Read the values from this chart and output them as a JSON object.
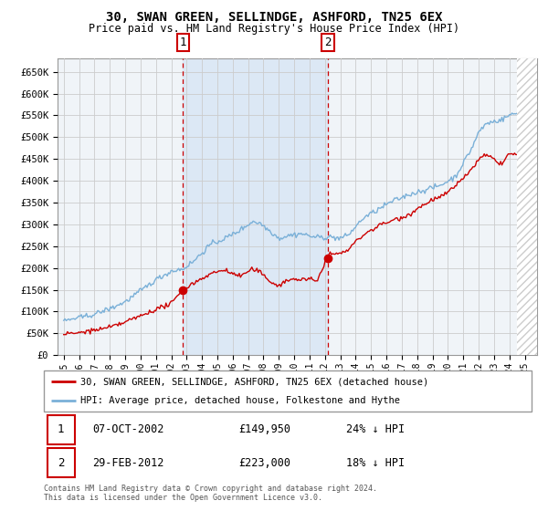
{
  "title": "30, SWAN GREEN, SELLINDGE, ASHFORD, TN25 6EX",
  "subtitle": "Price paid vs. HM Land Registry's House Price Index (HPI)",
  "ylim": [
    0,
    680000
  ],
  "background_color": "#ffffff",
  "grid_color": "#cccccc",
  "plot_bg_color": "#f0f4f8",
  "shade_color": "#dce8f5",
  "hpi_line_color": "#7ab0d8",
  "price_line_color": "#cc0000",
  "vline_color": "#cc0000",
  "sale1_x": 2002.77,
  "sale1_y": 149950,
  "sale1_label": "1",
  "sale1_date": "07-OCT-2002",
  "sale1_price": "£149,950",
  "sale1_hpi": "24% ↓ HPI",
  "sale2_x": 2012.17,
  "sale2_y": 223000,
  "sale2_label": "2",
  "sale2_date": "29-FEB-2012",
  "sale2_price": "£223,000",
  "sale2_hpi": "18% ↓ HPI",
  "legend_house": "30, SWAN GREEN, SELLINDGE, ASHFORD, TN25 6EX (detached house)",
  "legend_hpi": "HPI: Average price, detached house, Folkestone and Hythe",
  "footer": "Contains HM Land Registry data © Crown copyright and database right 2024.\nThis data is licensed under the Open Government Licence v3.0.",
  "xtick_years": [
    1995,
    1996,
    1997,
    1998,
    1999,
    2000,
    2001,
    2002,
    2003,
    2004,
    2005,
    2006,
    2007,
    2008,
    2009,
    2010,
    2011,
    2012,
    2013,
    2014,
    2015,
    2016,
    2017,
    2018,
    2019,
    2020,
    2021,
    2022,
    2023,
    2024,
    2025
  ],
  "hpi_keypoints": [
    [
      1995.0,
      78000
    ],
    [
      1996.0,
      85000
    ],
    [
      1997.0,
      95000
    ],
    [
      1998.0,
      108000
    ],
    [
      1999.0,
      125000
    ],
    [
      2000.0,
      150000
    ],
    [
      2001.0,
      175000
    ],
    [
      2002.0,
      195000
    ],
    [
      2002.77,
      200000
    ],
    [
      2003.5,
      220000
    ],
    [
      2004.5,
      255000
    ],
    [
      2005.5,
      270000
    ],
    [
      2006.5,
      290000
    ],
    [
      2007.3,
      310000
    ],
    [
      2007.8,
      305000
    ],
    [
      2008.5,
      285000
    ],
    [
      2009.0,
      270000
    ],
    [
      2009.5,
      275000
    ],
    [
      2010.5,
      280000
    ],
    [
      2011.0,
      275000
    ],
    [
      2011.5,
      272000
    ],
    [
      2012.17,
      272000
    ],
    [
      2012.5,
      270000
    ],
    [
      2013.0,
      268000
    ],
    [
      2013.5,
      275000
    ],
    [
      2014.0,
      295000
    ],
    [
      2014.5,
      315000
    ],
    [
      2015.5,
      335000
    ],
    [
      2016.5,
      355000
    ],
    [
      2017.5,
      370000
    ],
    [
      2018.5,
      380000
    ],
    [
      2019.5,
      390000
    ],
    [
      2020.5,
      410000
    ],
    [
      2021.0,
      440000
    ],
    [
      2021.5,
      470000
    ],
    [
      2022.0,
      510000
    ],
    [
      2022.5,
      530000
    ],
    [
      2023.0,
      535000
    ],
    [
      2023.5,
      540000
    ],
    [
      2024.0,
      550000
    ],
    [
      2024.5,
      555000
    ]
  ],
  "price_keypoints": [
    [
      1995.0,
      48000
    ],
    [
      1996.0,
      52000
    ],
    [
      1997.0,
      58000
    ],
    [
      1998.0,
      65000
    ],
    [
      1999.0,
      76000
    ],
    [
      2000.0,
      90000
    ],
    [
      2001.0,
      105000
    ],
    [
      2002.0,
      118000
    ],
    [
      2002.77,
      149950
    ],
    [
      2003.5,
      165000
    ],
    [
      2004.5,
      185000
    ],
    [
      2005.0,
      190000
    ],
    [
      2005.5,
      195000
    ],
    [
      2006.0,
      185000
    ],
    [
      2006.5,
      180000
    ],
    [
      2007.0,
      190000
    ],
    [
      2007.3,
      195000
    ],
    [
      2007.8,
      188000
    ],
    [
      2008.0,
      180000
    ],
    [
      2008.5,
      165000
    ],
    [
      2009.0,
      155000
    ],
    [
      2009.3,
      162000
    ],
    [
      2009.5,
      165000
    ],
    [
      2010.0,
      170000
    ],
    [
      2010.5,
      168000
    ],
    [
      2011.0,
      168000
    ],
    [
      2011.5,
      163000
    ],
    [
      2012.17,
      223000
    ],
    [
      2012.5,
      225000
    ],
    [
      2013.0,
      228000
    ],
    [
      2013.5,
      235000
    ],
    [
      2014.0,
      255000
    ],
    [
      2014.5,
      270000
    ],
    [
      2015.5,
      290000
    ],
    [
      2016.5,
      305000
    ],
    [
      2017.0,
      310000
    ],
    [
      2017.5,
      318000
    ],
    [
      2018.0,
      330000
    ],
    [
      2018.5,
      340000
    ],
    [
      2019.0,
      350000
    ],
    [
      2019.5,
      355000
    ],
    [
      2020.0,
      365000
    ],
    [
      2020.5,
      380000
    ],
    [
      2021.0,
      400000
    ],
    [
      2021.5,
      415000
    ],
    [
      2022.0,
      440000
    ],
    [
      2022.5,
      450000
    ],
    [
      2023.0,
      440000
    ],
    [
      2023.5,
      430000
    ],
    [
      2024.0,
      455000
    ],
    [
      2024.5,
      450000
    ]
  ]
}
